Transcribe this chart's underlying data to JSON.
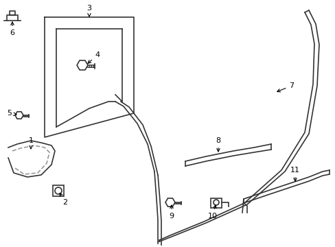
{
  "background_color": "#ffffff",
  "line_color": "#333333",
  "label_color": "#000000",
  "title": "",
  "figsize": [
    4.89,
    3.6
  ],
  "dpi": 100,
  "parts": {
    "labels": [
      "1",
      "2",
      "3",
      "4",
      "5",
      "6",
      "7",
      "8",
      "9",
      "10",
      "11"
    ]
  }
}
